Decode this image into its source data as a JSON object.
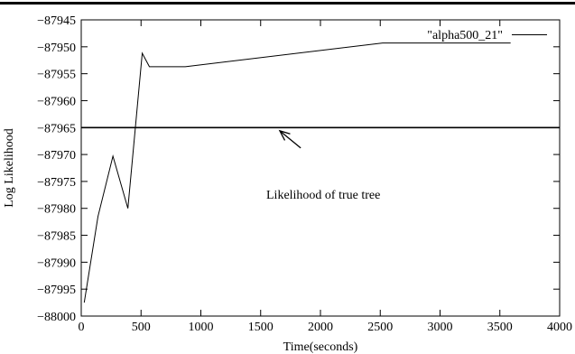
{
  "chart_data": {
    "type": "line",
    "title": "",
    "xlabel": "Time(seconds)",
    "ylabel": "Log Likelihood",
    "xlim": [
      0,
      4000
    ],
    "ylim": [
      -88000,
      -87945
    ],
    "x_ticks": [
      0,
      500,
      1000,
      1500,
      2000,
      2500,
      3000,
      3500,
      4000
    ],
    "y_ticks": [
      -87945,
      -87950,
      -87955,
      -87960,
      -87965,
      -87970,
      -87975,
      -87980,
      -87985,
      -87990,
      -87995,
      -88000
    ],
    "y_tick_labels": [
      "−87945",
      "−87950",
      "−87955",
      "−87960",
      "−87965",
      "−87970",
      "−87975",
      "−87980",
      "−87985",
      "−87990",
      "−87995",
      "−88000"
    ],
    "grid": false,
    "legend": {
      "position": "top-right"
    },
    "series": [
      {
        "name": "\"alpha500_21\"",
        "x": [
          25,
          140,
          265,
          390,
          510,
          570,
          870,
          2520,
          3590
        ],
        "y": [
          -87997.5,
          -87981.5,
          -87970.3,
          -87980.0,
          -87951.2,
          -87953.7,
          -87953.7,
          -87949.3,
          -87949.3
        ]
      }
    ],
    "reference_line": {
      "y": -87965
    },
    "annotations": [
      {
        "text": "Likelihood of true tree",
        "arrow_from": [
          1835,
          -87968.8
        ],
        "arrow_to": [
          1660,
          -87965.6
        ]
      }
    ]
  }
}
